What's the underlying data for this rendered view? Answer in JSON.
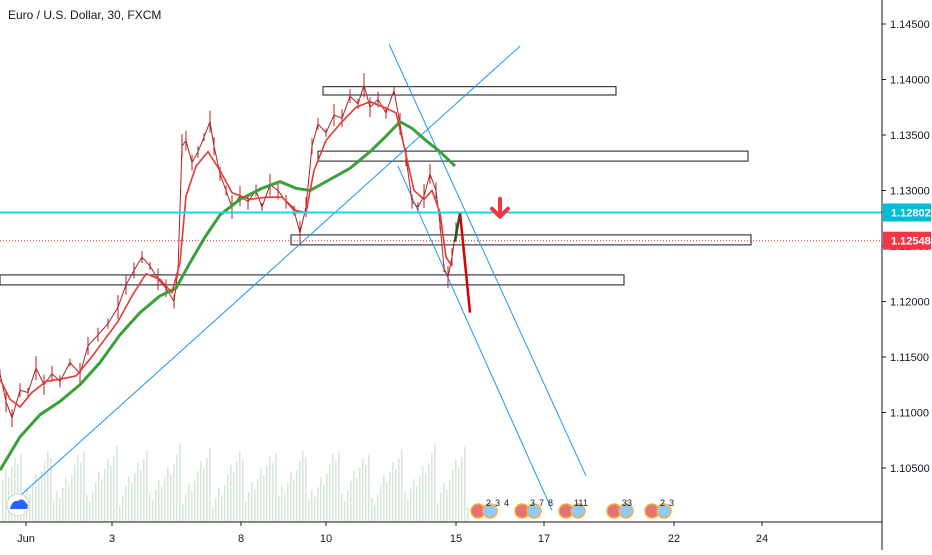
{
  "header": {
    "title": "Euro / U.S. Dollar, 30, FXCM"
  },
  "colors": {
    "background": "#ffffff",
    "candle": "#b22222",
    "ema_fast": "#e53935",
    "ema_slow": "#3aa13a",
    "trendline": "#2196f3",
    "horizontal_level": "#18d6e6",
    "current_price_line": "#d32f2f",
    "price_tag_level": "#00bcd4",
    "price_tag_current": "#f23645",
    "volume": "#d8e8d8",
    "arrow": "#f23645"
  },
  "icons": {
    "logo": "tradingview-cloud-icon",
    "arrow": "arrow-down-icon",
    "flag": "us-flag-icon"
  },
  "chart_data": {
    "type": "candlestick",
    "symbol": "Euro / U.S. Dollar",
    "interval": "30",
    "exchange": "FXCM",
    "y_ticks": [
      "1.14500",
      "1.14000",
      "1.13500",
      "1.13000",
      "1.12500",
      "1.12000",
      "1.11500",
      "1.11000",
      "1.10500"
    ],
    "x_ticks": [
      "Jun",
      "3",
      "8",
      "10",
      "15",
      "17",
      "22",
      "24"
    ],
    "ylim": [
      1.102,
      1.1475
    ],
    "price_tags": {
      "level": "1.12802",
      "current": "1.12548"
    },
    "level_price": 1.12802,
    "current_price": 1.12548,
    "price_series": [
      [
        0,
        1.1135
      ],
      [
        6,
        1.111
      ],
      [
        12,
        1.1095
      ],
      [
        20,
        1.112
      ],
      [
        28,
        1.1118
      ],
      [
        36,
        1.114
      ],
      [
        44,
        1.1125
      ],
      [
        52,
        1.1135
      ],
      [
        60,
        1.1128
      ],
      [
        70,
        1.1145
      ],
      [
        80,
        1.1135
      ],
      [
        88,
        1.116
      ],
      [
        98,
        1.117
      ],
      [
        108,
        1.118
      ],
      [
        118,
        1.1195
      ],
      [
        126,
        1.1215
      ],
      [
        134,
        1.1228
      ],
      [
        142,
        1.124
      ],
      [
        150,
        1.1232
      ],
      [
        158,
        1.122
      ],
      [
        166,
        1.1212
      ],
      [
        174,
        1.12
      ],
      [
        178,
        1.1228
      ],
      [
        182,
        1.134
      ],
      [
        186,
        1.1345
      ],
      [
        192,
        1.1325
      ],
      [
        198,
        1.1335
      ],
      [
        204,
        1.1348
      ],
      [
        210,
        1.1362
      ],
      [
        214,
        1.134
      ],
      [
        220,
        1.1315
      ],
      [
        226,
        1.13
      ],
      [
        232,
        1.1285
      ],
      [
        240,
        1.1295
      ],
      [
        248,
        1.129
      ],
      [
        256,
        1.13
      ],
      [
        262,
        1.1285
      ],
      [
        270,
        1.1305
      ],
      [
        278,
        1.13
      ],
      [
        286,
        1.129
      ],
      [
        294,
        1.1282
      ],
      [
        300,
        1.1262
      ],
      [
        306,
        1.1285
      ],
      [
        312,
        1.134
      ],
      [
        318,
        1.136
      ],
      [
        326,
        1.1352
      ],
      [
        334,
        1.1368
      ],
      [
        342,
        1.1365
      ],
      [
        350,
        1.1385
      ],
      [
        358,
        1.1378
      ],
      [
        364,
        1.1395
      ],
      [
        370,
        1.1375
      ],
      [
        378,
        1.1382
      ],
      [
        386,
        1.137
      ],
      [
        394,
        1.139
      ],
      [
        400,
        1.136
      ],
      [
        406,
        1.133
      ],
      [
        412,
        1.129
      ],
      [
        418,
        1.1285
      ],
      [
        424,
        1.1295
      ],
      [
        430,
        1.1315
      ],
      [
        436,
        1.13
      ],
      [
        440,
        1.127
      ],
      [
        444,
        1.123
      ],
      [
        448,
        1.1222
      ],
      [
        452,
        1.124
      ],
      [
        456,
        1.1265
      ]
    ],
    "ema_slow": [
      [
        0,
        1.1048
      ],
      [
        20,
        1.1078
      ],
      [
        40,
        1.1098
      ],
      [
        60,
        1.111
      ],
      [
        80,
        1.1125
      ],
      [
        100,
        1.1145
      ],
      [
        120,
        1.117
      ],
      [
        140,
        1.119
      ],
      [
        160,
        1.1205
      ],
      [
        176,
        1.1212
      ],
      [
        190,
        1.1235
      ],
      [
        205,
        1.1258
      ],
      [
        220,
        1.1278
      ],
      [
        240,
        1.1292
      ],
      [
        262,
        1.1302
      ],
      [
        280,
        1.1308
      ],
      [
        296,
        1.1302
      ],
      [
        310,
        1.13
      ],
      [
        330,
        1.131
      ],
      [
        350,
        1.132
      ],
      [
        370,
        1.1335
      ],
      [
        385,
        1.1348
      ],
      [
        400,
        1.1362
      ],
      [
        412,
        1.1356
      ],
      [
        426,
        1.1345
      ],
      [
        440,
        1.1335
      ],
      [
        455,
        1.1322
      ]
    ],
    "ema_fast": [
      [
        0,
        1.113
      ],
      [
        10,
        1.1112
      ],
      [
        20,
        1.1105
      ],
      [
        32,
        1.1118
      ],
      [
        46,
        1.1128
      ],
      [
        60,
        1.113
      ],
      [
        76,
        1.1133
      ],
      [
        90,
        1.1148
      ],
      [
        104,
        1.1165
      ],
      [
        118,
        1.1182
      ],
      [
        132,
        1.1205
      ],
      [
        146,
        1.1225
      ],
      [
        160,
        1.122
      ],
      [
        172,
        1.1208
      ],
      [
        180,
        1.1235
      ],
      [
        186,
        1.1295
      ],
      [
        196,
        1.1322
      ],
      [
        208,
        1.1335
      ],
      [
        220,
        1.1318
      ],
      [
        232,
        1.1298
      ],
      [
        250,
        1.1292
      ],
      [
        266,
        1.1294
      ],
      [
        282,
        1.1294
      ],
      [
        296,
        1.1282
      ],
      [
        306,
        1.128
      ],
      [
        314,
        1.1318
      ],
      [
        326,
        1.1345
      ],
      [
        340,
        1.136
      ],
      [
        356,
        1.1375
      ],
      [
        370,
        1.138
      ],
      [
        384,
        1.1375
      ],
      [
        396,
        1.137
      ],
      [
        404,
        1.134
      ],
      [
        414,
        1.13
      ],
      [
        424,
        1.1292
      ],
      [
        432,
        1.13
      ],
      [
        440,
        1.128
      ],
      [
        446,
        1.124
      ],
      [
        452,
        1.1232
      ]
    ],
    "boxes": [
      {
        "x1": 323,
        "x2": 616,
        "y1": 1.13935,
        "y2": 1.1386
      },
      {
        "x1": 318,
        "x2": 748,
        "y1": 1.13355,
        "y2": 1.13265
      },
      {
        "x1": 291,
        "x2": 751,
        "y1": 1.126,
        "y2": 1.1251
      },
      {
        "x1": 0,
        "x2": 624,
        "y1": 1.1224,
        "y2": 1.1215
      }
    ],
    "trendlines": [
      {
        "p1": [
          14,
          1.102
        ],
        "p2": [
          520,
          1.143
        ]
      },
      {
        "p1": [
          389,
          1.1432
        ],
        "p2": [
          586,
          1.1043
        ]
      },
      {
        "p1": [
          398,
          1.1322
        ],
        "p2": [
          552,
          1.1012
        ]
      }
    ],
    "projection": [
      {
        "points": [
          [
            455,
            1.1254
          ],
          [
            460,
            1.128
          ]
        ],
        "color": "#1b5e20"
      },
      {
        "points": [
          [
            460,
            1.128
          ],
          [
            470,
            1.119
          ]
        ],
        "color": "#d50000"
      }
    ],
    "arrow_at": [
      500,
      1.128
    ],
    "volume_area_bottom": 522,
    "events": [
      {
        "x": 478,
        "labels": [
          "2",
          "3",
          "4"
        ]
      },
      {
        "x": 522,
        "labels": [
          "3",
          "7",
          "8"
        ]
      },
      {
        "x": 566,
        "labels": [
          "11",
          "1"
        ]
      },
      {
        "x": 614,
        "labels": [
          "33"
        ]
      },
      {
        "x": 652,
        "labels": [
          "2",
          "3"
        ]
      }
    ]
  }
}
